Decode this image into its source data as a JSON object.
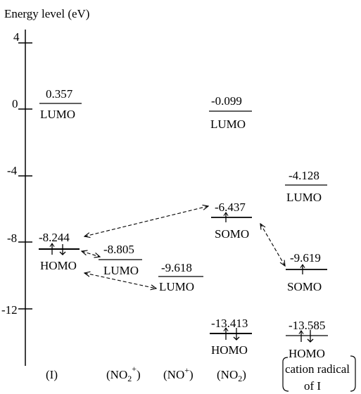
{
  "axis_title": "Energy level (eV)",
  "ticks": [
    "4",
    "0",
    "-4",
    "-8",
    "-12"
  ],
  "levels": [
    {
      "value": "0.357",
      "kind": "LUMO",
      "electrons": "none"
    },
    {
      "value": "-8.244",
      "kind": "HOMO",
      "electrons": "pair"
    },
    {
      "value": "-8.805",
      "kind": "LUMO",
      "electrons": "none"
    },
    {
      "value": "-9.618",
      "kind": "LUMO",
      "electrons": "none"
    },
    {
      "value": "-0.099",
      "kind": "LUMO",
      "electrons": "none"
    },
    {
      "value": "-6.437",
      "kind": "SOMO",
      "electrons": "single"
    },
    {
      "value": "-13.413",
      "kind": "HOMO",
      "electrons": "pair"
    },
    {
      "value": "-4.128",
      "kind": "LUMO",
      "electrons": "none"
    },
    {
      "value": "-9.619",
      "kind": "SOMO",
      "electrons": "single"
    },
    {
      "value": "-13.585",
      "kind": "HOMO",
      "electrons": "pair"
    }
  ],
  "species": {
    "I": "(I)",
    "no2plus_open": "(NO",
    "no2plus_sub": "2",
    "no2plus_sup": "+",
    "no2plus_close": ")",
    "noplus_open": "(NO",
    "noplus_sup": "+",
    "noplus_close": ")",
    "no2_open": "(NO",
    "no2_sub": "2",
    "no2_close": ")",
    "cation_line1": "cation radical",
    "cation_line2": "of I"
  }
}
